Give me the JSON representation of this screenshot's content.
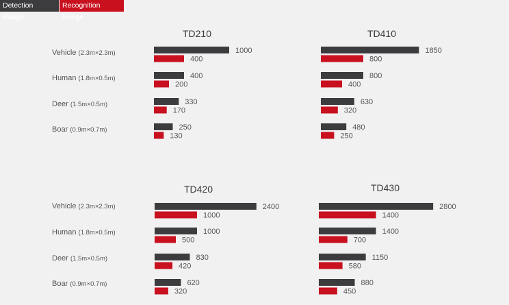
{
  "legend": {
    "detection_label": "Detection Range",
    "recognition_label": "Recognition Range"
  },
  "colors": {
    "detection": "#3c3c3e",
    "recognition": "#c8101e",
    "background": "#f1f1f2"
  },
  "chart_data": [
    {
      "type": "bar",
      "title": "TD210",
      "categories": [
        "Vehicle",
        "Human",
        "Deer",
        "Boar"
      ],
      "sizes": [
        "(2.3m×2.3m)",
        "(1.8m×0.5m)",
        "(1.5m×0.5m)",
        "(0.9m×0.7m)"
      ],
      "series": [
        {
          "name": "Detection Range",
          "values": [
            1000,
            400,
            330,
            250
          ]
        },
        {
          "name": "Recognition Range",
          "values": [
            400,
            200,
            170,
            130
          ]
        }
      ]
    },
    {
      "type": "bar",
      "title": "TD410",
      "categories": [
        "Vehicle",
        "Human",
        "Deer",
        "Boar"
      ],
      "sizes": [
        "(2.3m×2.3m)",
        "(1.8m×0.5m)",
        "(1.5m×0.5m)",
        "(0.9m×0.7m)"
      ],
      "series": [
        {
          "name": "Detection Range",
          "values": [
            1850,
            800,
            630,
            480
          ]
        },
        {
          "name": "Recognition Range",
          "values": [
            800,
            400,
            320,
            250
          ]
        }
      ]
    },
    {
      "type": "bar",
      "title": "TD420",
      "categories": [
        "Vehicle",
        "Human",
        "Deer",
        "Boar"
      ],
      "sizes": [
        "(2.3m×2.3m)",
        "(1.8m×0.5m)",
        "(1.5m×0.5m)",
        "(0.9m×0.7m)"
      ],
      "series": [
        {
          "name": "Detection Range",
          "values": [
            2400,
            1000,
            830,
            620
          ]
        },
        {
          "name": "Recognition Range",
          "values": [
            1000,
            500,
            420,
            320
          ]
        }
      ]
    },
    {
      "type": "bar",
      "title": "TD430",
      "categories": [
        "Vehicle",
        "Human",
        "Deer",
        "Boar"
      ],
      "sizes": [
        "(2.3m×2.3m)",
        "(1.8m×0.5m)",
        "(1.5m×0.5m)",
        "(0.9m×0.7m)"
      ],
      "series": [
        {
          "name": "Detection Range",
          "values": [
            2800,
            1400,
            1150,
            880
          ]
        },
        {
          "name": "Recognition Range",
          "values": [
            1400,
            700,
            580,
            450
          ]
        }
      ]
    }
  ]
}
